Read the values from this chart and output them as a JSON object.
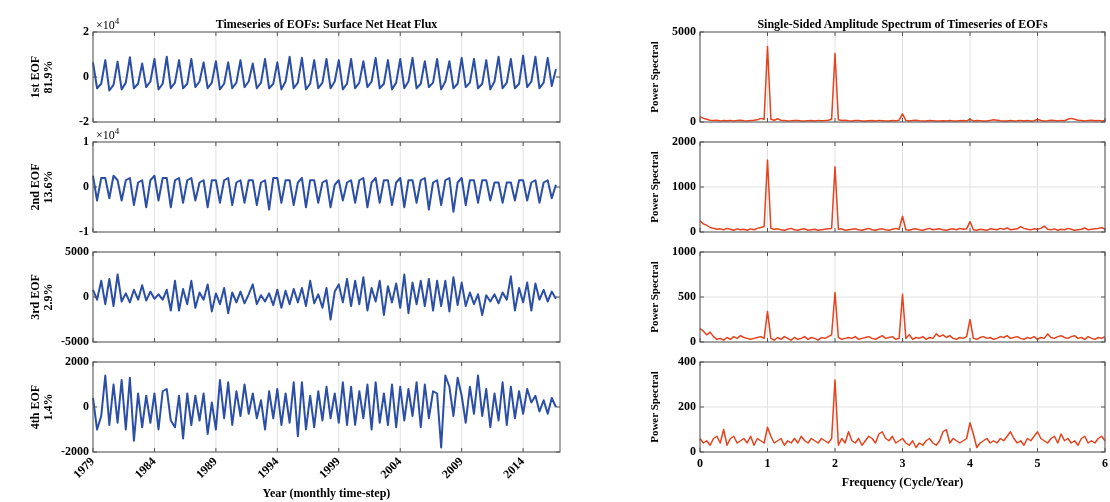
{
  "chart_data": [
    {
      "type": "line",
      "title": "Timeseries of EOFs: Surface Net Heat Flux",
      "ylabel": "1st EOF\n81.9%",
      "annotations": [
        "×10$^{4}$"
      ],
      "grid": true,
      "tick_labels": "y",
      "xlim": [
        1979,
        2017
      ],
      "xticks": [
        1979,
        1984,
        1989,
        1994,
        1999,
        2004,
        2009,
        2014
      ],
      "ylim": [
        -2,
        2
      ],
      "yticks": [
        -2,
        0,
        2
      ],
      "x": [
        1979,
        1979.33,
        1979.67,
        1980,
        1980.33,
        1980.67,
        1981,
        1981.33,
        1981.67,
        1982,
        1982.33,
        1982.67,
        1983,
        1983.33,
        1983.67,
        1984,
        1984.33,
        1984.67,
        1985,
        1985.33,
        1985.67,
        1986,
        1986.33,
        1986.67,
        1987,
        1987.33,
        1987.67,
        1988,
        1988.33,
        1988.67,
        1989,
        1989.33,
        1989.67,
        1990,
        1990.33,
        1990.67,
        1991,
        1991.33,
        1991.67,
        1992,
        1992.33,
        1992.67,
        1993,
        1993.33,
        1993.67,
        1994,
        1994.33,
        1994.67,
        1995,
        1995.33,
        1995.67,
        1996,
        1996.33,
        1996.67,
        1997,
        1997.33,
        1997.67,
        1998,
        1998.33,
        1998.67,
        1999,
        1999.33,
        1999.67,
        2000,
        2000.33,
        2000.67,
        2001,
        2001.33,
        2001.67,
        2002,
        2002.33,
        2002.67,
        2003,
        2003.33,
        2003.67,
        2004,
        2004.33,
        2004.67,
        2005,
        2005.33,
        2005.67,
        2006,
        2006.33,
        2006.67,
        2007,
        2007.33,
        2007.67,
        2008,
        2008.33,
        2008.67,
        2009,
        2009.33,
        2009.67,
        2010,
        2010.33,
        2010.67,
        2011,
        2011.33,
        2011.67,
        2012,
        2012.33,
        2012.67,
        2013,
        2013.33,
        2013.67,
        2014,
        2014.33,
        2014.67,
        2015,
        2015.33,
        2015.67,
        2016,
        2016.33,
        2016.67
      ],
      "series": [
        {
          "color": "#2b4ea6",
          "values": [
            0.65,
            -0.5,
            -0.3,
            0.75,
            -0.6,
            -0.35,
            0.68,
            -0.55,
            -0.25,
            0.88,
            -0.5,
            -0.3,
            0.6,
            -0.45,
            -0.2,
            0.8,
            -0.55,
            -0.3,
            0.9,
            -0.5,
            -0.25,
            0.75,
            -0.5,
            -0.3,
            0.8,
            -0.45,
            -0.2,
            0.65,
            -0.5,
            -0.25,
            0.7,
            -0.55,
            -0.3,
            0.65,
            -0.5,
            -0.25,
            0.75,
            -0.45,
            -0.2,
            0.6,
            -0.5,
            -0.25,
            0.8,
            -0.5,
            -0.3,
            0.65,
            -0.55,
            -0.2,
            0.9,
            -0.5,
            -0.25,
            0.85,
            -0.55,
            -0.3,
            0.75,
            -0.5,
            -0.25,
            0.8,
            -0.5,
            -0.2,
            0.75,
            -0.55,
            -0.3,
            0.8,
            -0.5,
            -0.25,
            0.7,
            -0.45,
            -0.2,
            0.85,
            -0.5,
            -0.3,
            0.75,
            -0.55,
            -0.25,
            0.8,
            -0.5,
            -0.2,
            0.85,
            -0.5,
            -0.3,
            0.7,
            -0.45,
            -0.25,
            0.8,
            -0.55,
            -0.2,
            0.7,
            -0.5,
            -0.3,
            0.85,
            -0.45,
            -0.25,
            0.8,
            -0.5,
            -0.3,
            0.75,
            -0.55,
            -0.2,
            0.9,
            -0.5,
            -0.25,
            0.8,
            -0.5,
            -0.3,
            0.95,
            -0.45,
            -0.2,
            0.9,
            -0.5,
            -0.25,
            0.85,
            -0.4,
            0.35
          ]
        }
      ]
    },
    {
      "type": "line",
      "title": "Single-Sided Amplitude Spectrum of Timeseries of EOFs",
      "ylabel": "Power Spectral",
      "grid": true,
      "tick_labels": "y",
      "xlim": [
        0,
        6
      ],
      "xticks": [
        0,
        1,
        2,
        3,
        4,
        5,
        6
      ],
      "ylim": [
        0,
        5000
      ],
      "yticks": [
        0,
        5000
      ],
      "x": [
        0,
        0.05,
        0.1,
        0.15,
        0.2,
        0.25,
        0.3,
        0.35,
        0.4,
        0.45,
        0.5,
        0.55,
        0.6,
        0.65,
        0.7,
        0.75,
        0.8,
        0.85,
        0.9,
        0.95,
        1,
        1.05,
        1.1,
        1.15,
        1.2,
        1.25,
        1.3,
        1.35,
        1.4,
        1.45,
        1.5,
        1.55,
        1.6,
        1.65,
        1.7,
        1.75,
        1.8,
        1.85,
        1.9,
        1.95,
        2,
        2.05,
        2.1,
        2.15,
        2.2,
        2.25,
        2.3,
        2.35,
        2.4,
        2.45,
        2.5,
        2.55,
        2.6,
        2.65,
        2.7,
        2.75,
        2.8,
        2.85,
        2.9,
        2.95,
        3,
        3.05,
        3.1,
        3.15,
        3.2,
        3.25,
        3.3,
        3.35,
        3.4,
        3.45,
        3.5,
        3.55,
        3.6,
        3.65,
        3.7,
        3.75,
        3.8,
        3.85,
        3.9,
        3.95,
        4,
        4.05,
        4.1,
        4.15,
        4.2,
        4.25,
        4.3,
        4.35,
        4.4,
        4.45,
        4.5,
        4.55,
        4.6,
        4.65,
        4.7,
        4.75,
        4.8,
        4.85,
        4.9,
        4.95,
        5,
        5.05,
        5.1,
        5.15,
        5.2,
        5.25,
        5.3,
        5.35,
        5.4,
        5.45,
        5.5,
        5.55,
        5.6,
        5.65,
        5.7,
        5.75,
        5.8,
        5.85,
        5.9,
        5.95,
        6
      ],
      "series": [
        {
          "color": "#e5421d",
          "values": [
            300,
            200,
            150,
            100,
            80,
            100,
            60,
            80,
            70,
            90,
            60,
            80,
            100,
            70,
            60,
            90,
            100,
            120,
            200,
            150,
            4200,
            150,
            100,
            180,
            90,
            80,
            60,
            70,
            90,
            80,
            60,
            50,
            70,
            80,
            60,
            90,
            70,
            80,
            100,
            150,
            3800,
            120,
            80,
            100,
            70,
            60,
            80,
            90,
            60,
            50,
            70,
            80,
            60,
            90,
            70,
            50,
            60,
            80,
            70,
            100,
            450,
            90,
            60,
            80,
            100,
            70,
            50,
            60,
            80,
            70,
            60,
            50,
            70,
            60,
            80,
            50,
            60,
            70,
            80,
            60,
            150,
            60,
            80,
            70,
            50,
            60,
            90,
            120,
            100,
            70,
            60,
            50,
            80,
            60,
            70,
            90,
            60,
            80,
            50,
            70,
            150,
            80,
            60,
            70,
            100,
            80,
            60,
            90,
            70,
            150,
            200,
            150,
            100,
            80,
            60,
            90,
            100,
            70,
            80,
            60,
            80
          ]
        }
      ]
    },
    {
      "type": "line",
      "ylabel": "2nd EOF\n13.6%",
      "annotations": [
        "×10$^{4}$"
      ],
      "grid": true,
      "tick_labels": "y",
      "xlim": [
        1979,
        2017
      ],
      "xticks": [
        1979,
        1984,
        1989,
        1994,
        1999,
        2004,
        2009,
        2014
      ],
      "ylim": [
        -1,
        1
      ],
      "yticks": [
        -1,
        0,
        1
      ],
      "x": [
        1979,
        1979.33,
        1979.67,
        1980,
        1980.33,
        1980.67,
        1981,
        1981.33,
        1981.67,
        1982,
        1982.33,
        1982.67,
        1983,
        1983.33,
        1983.67,
        1984,
        1984.33,
        1984.67,
        1985,
        1985.33,
        1985.67,
        1986,
        1986.33,
        1986.67,
        1987,
        1987.33,
        1987.67,
        1988,
        1988.33,
        1988.67,
        1989,
        1989.33,
        1989.67,
        1990,
        1990.33,
        1990.67,
        1991,
        1991.33,
        1991.67,
        1992,
        1992.33,
        1992.67,
        1993,
        1993.33,
        1993.67,
        1994,
        1994.33,
        1994.67,
        1995,
        1995.33,
        1995.67,
        1996,
        1996.33,
        1996.67,
        1997,
        1997.33,
        1997.67,
        1998,
        1998.33,
        1998.67,
        1999,
        1999.33,
        1999.67,
        2000,
        2000.33,
        2000.67,
        2001,
        2001.33,
        2001.67,
        2002,
        2002.33,
        2002.67,
        2003,
        2003.33,
        2003.67,
        2004,
        2004.33,
        2004.67,
        2005,
        2005.33,
        2005.67,
        2006,
        2006.33,
        2006.67,
        2007,
        2007.33,
        2007.67,
        2008,
        2008.33,
        2008.67,
        2009,
        2009.33,
        2009.67,
        2010,
        2010.33,
        2010.67,
        2011,
        2011.33,
        2011.67,
        2012,
        2012.33,
        2012.67,
        2013,
        2013.33,
        2013.67,
        2014,
        2014.33,
        2014.67,
        2015,
        2015.33,
        2015.67,
        2016,
        2016.33,
        2016.67
      ],
      "series": [
        {
          "color": "#2b4ea6",
          "values": [
            0.25,
            -0.3,
            0.2,
            0.2,
            -0.25,
            0.25,
            0.15,
            -0.3,
            0.15,
            0.2,
            -0.4,
            0.1,
            0.15,
            -0.45,
            0.15,
            0.25,
            -0.3,
            0.2,
            0.2,
            -0.45,
            0.15,
            0.2,
            -0.35,
            0.15,
            0.2,
            -0.3,
            0.1,
            0.15,
            -0.45,
            0.15,
            0.15,
            -0.35,
            0.15,
            0.2,
            -0.4,
            0.1,
            0.15,
            -0.35,
            0.15,
            0.15,
            -0.4,
            0.1,
            0.15,
            -0.5,
            0.2,
            0.2,
            -0.35,
            0.15,
            0.15,
            -0.4,
            0.1,
            0.2,
            -0.45,
            0.15,
            0.15,
            -0.35,
            0.1,
            0.15,
            -0.45,
            0.05,
            0.15,
            -0.3,
            0.1,
            0.15,
            -0.35,
            0.15,
            0.2,
            -0.45,
            0.1,
            0.2,
            -0.35,
            0.15,
            0.15,
            -0.4,
            0.1,
            0.2,
            -0.45,
            0.15,
            0.15,
            -0.35,
            0.15,
            0.2,
            -0.5,
            0.1,
            0.15,
            -0.4,
            0.15,
            0.2,
            -0.55,
            0.1,
            0.2,
            -0.4,
            0.15,
            0.15,
            -0.35,
            0.15,
            0.15,
            -0.3,
            0.1,
            0.1,
            -0.35,
            0.1,
            0.1,
            -0.3,
            0.15,
            0.15,
            -0.3,
            0.1,
            0.15,
            -0.35,
            0.1,
            0.15,
            -0.25,
            0.05
          ]
        }
      ]
    },
    {
      "type": "line",
      "ylabel": "Power Spectral",
      "grid": true,
      "tick_labels": "y",
      "xlim": [
        0,
        6
      ],
      "xticks": [
        0,
        1,
        2,
        3,
        4,
        5,
        6
      ],
      "ylim": [
        0,
        2000
      ],
      "yticks": [
        0,
        1000,
        2000
      ],
      "x": [
        0,
        0.05,
        0.1,
        0.15,
        0.2,
        0.25,
        0.3,
        0.35,
        0.4,
        0.45,
        0.5,
        0.55,
        0.6,
        0.65,
        0.7,
        0.75,
        0.8,
        0.85,
        0.9,
        0.95,
        1,
        1.05,
        1.1,
        1.15,
        1.2,
        1.25,
        1.3,
        1.35,
        1.4,
        1.45,
        1.5,
        1.55,
        1.6,
        1.65,
        1.7,
        1.75,
        1.8,
        1.85,
        1.9,
        1.95,
        2,
        2.05,
        2.1,
        2.15,
        2.2,
        2.25,
        2.3,
        2.35,
        2.4,
        2.45,
        2.5,
        2.55,
        2.6,
        2.65,
        2.7,
        2.75,
        2.8,
        2.85,
        2.9,
        2.95,
        3,
        3.05,
        3.1,
        3.15,
        3.2,
        3.25,
        3.3,
        3.35,
        3.4,
        3.45,
        3.5,
        3.55,
        3.6,
        3.65,
        3.7,
        3.75,
        3.8,
        3.85,
        3.9,
        3.95,
        4,
        4.05,
        4.1,
        4.15,
        4.2,
        4.25,
        4.3,
        4.35,
        4.4,
        4.45,
        4.5,
        4.55,
        4.6,
        4.65,
        4.7,
        4.75,
        4.8,
        4.85,
        4.9,
        4.95,
        5,
        5.05,
        5.1,
        5.15,
        5.2,
        5.25,
        5.3,
        5.35,
        5.4,
        5.45,
        5.5,
        5.55,
        5.6,
        5.65,
        5.7,
        5.75,
        5.8,
        5.85,
        5.9,
        5.95,
        6
      ],
      "series": [
        {
          "color": "#e5421d",
          "values": [
            250,
            180,
            150,
            100,
            80,
            60,
            70,
            50,
            80,
            60,
            40,
            70,
            50,
            60,
            40,
            70,
            50,
            80,
            100,
            120,
            1600,
            80,
            60,
            70,
            50,
            40,
            60,
            80,
            50,
            40,
            60,
            70,
            40,
            50,
            60,
            40,
            50,
            60,
            70,
            80,
            1450,
            60,
            70,
            40,
            50,
            60,
            70,
            50,
            40,
            60,
            80,
            50,
            40,
            60,
            70,
            50,
            40,
            60,
            80,
            60,
            350,
            50,
            40,
            60,
            70,
            50,
            40,
            60,
            80,
            50,
            60,
            70,
            50,
            40,
            60,
            70,
            50,
            80,
            60,
            70,
            230,
            50,
            40,
            60,
            50,
            40,
            70,
            60,
            50,
            80,
            60,
            90,
            50,
            60,
            70,
            120,
            80,
            60,
            50,
            70,
            60,
            80,
            130,
            60,
            50,
            70,
            40,
            60,
            50,
            80,
            60,
            40,
            50,
            60,
            90,
            50,
            60,
            70,
            80,
            100,
            60
          ]
        }
      ]
    },
    {
      "type": "line",
      "ylabel": "3rd EOF\n2.9%",
      "grid": true,
      "tick_labels": "y",
      "xlim": [
        1979,
        2017
      ],
      "xticks": [
        1979,
        1984,
        1989,
        1994,
        1999,
        2004,
        2009,
        2014
      ],
      "ylim": [
        -5000,
        5000
      ],
      "yticks": [
        -5000,
        0,
        5000
      ],
      "x": [
        1979,
        1979.33,
        1979.67,
        1980,
        1980.33,
        1980.67,
        1981,
        1981.33,
        1981.67,
        1982,
        1982.33,
        1982.67,
        1983,
        1983.33,
        1983.67,
        1984,
        1984.33,
        1984.67,
        1985,
        1985.33,
        1985.67,
        1986,
        1986.33,
        1986.67,
        1987,
        1987.33,
        1987.67,
        1988,
        1988.33,
        1988.67,
        1989,
        1989.33,
        1989.67,
        1990,
        1990.33,
        1990.67,
        1991,
        1991.33,
        1991.67,
        1992,
        1992.33,
        1992.67,
        1993,
        1993.33,
        1993.67,
        1994,
        1994.33,
        1994.67,
        1995,
        1995.33,
        1995.67,
        1996,
        1996.33,
        1996.67,
        1997,
        1997.33,
        1997.67,
        1998,
        1998.33,
        1998.67,
        1999,
        1999.33,
        1999.67,
        2000,
        2000.33,
        2000.67,
        2001,
        2001.33,
        2001.67,
        2002,
        2002.33,
        2002.67,
        2003,
        2003.33,
        2003.67,
        2004,
        2004.33,
        2004.67,
        2005,
        2005.33,
        2005.67,
        2006,
        2006.33,
        2006.67,
        2007,
        2007.33,
        2007.67,
        2008,
        2008.33,
        2008.67,
        2009,
        2009.33,
        2009.67,
        2010,
        2010.33,
        2010.67,
        2011,
        2011.33,
        2011.67,
        2012,
        2012.33,
        2012.67,
        2013,
        2013.33,
        2013.67,
        2014,
        2014.33,
        2014.67,
        2015,
        2015.33,
        2015.67,
        2016,
        2016.33,
        2016.67
      ],
      "series": [
        {
          "color": "#2b4ea6",
          "values": [
            800,
            -300,
            1800,
            -800,
            2000,
            -1000,
            2500,
            -500,
            400,
            -600,
            800,
            -300,
            1300,
            -400,
            600,
            -200,
            300,
            -300,
            800,
            -1500,
            1800,
            -1500,
            900,
            -800,
            1800,
            -1200,
            500,
            -300,
            1400,
            -1600,
            400,
            -800,
            1000,
            -1800,
            500,
            -600,
            600,
            -700,
            300,
            1400,
            -800,
            200,
            -500,
            400,
            -900,
            800,
            -1200,
            700,
            -800,
            900,
            -600,
            1000,
            -1000,
            1800,
            -700,
            300,
            -1200,
            1000,
            -2500,
            600,
            1400,
            -600,
            2000,
            -1000,
            1800,
            -800,
            2200,
            -1500,
            1000,
            -500,
            1800,
            -2000,
            1200,
            -600,
            1500,
            -1200,
            2500,
            -1800,
            1600,
            -800,
            1800,
            -1000,
            2000,
            -1500,
            1800,
            -1000,
            1800,
            -1600,
            2200,
            -900,
            1600,
            -1000,
            500,
            -800,
            300,
            -2000,
            200,
            -500,
            300,
            -700,
            500,
            -300,
            2300,
            -1500,
            1000,
            -600,
            1600,
            -1500,
            1500,
            -300,
            800,
            -500,
            600,
            -200
          ]
        }
      ]
    },
    {
      "type": "line",
      "ylabel": "Power Spectral",
      "grid": true,
      "tick_labels": "y",
      "xlim": [
        0,
        6
      ],
      "xticks": [
        0,
        1,
        2,
        3,
        4,
        5,
        6
      ],
      "ylim": [
        0,
        1000
      ],
      "yticks": [
        0,
        500,
        1000
      ],
      "x": [
        0,
        0.05,
        0.1,
        0.15,
        0.2,
        0.25,
        0.3,
        0.35,
        0.4,
        0.45,
        0.5,
        0.55,
        0.6,
        0.65,
        0.7,
        0.75,
        0.8,
        0.85,
        0.9,
        0.95,
        1,
        1.05,
        1.1,
        1.15,
        1.2,
        1.25,
        1.3,
        1.35,
        1.4,
        1.45,
        1.5,
        1.55,
        1.6,
        1.65,
        1.7,
        1.75,
        1.8,
        1.85,
        1.9,
        1.95,
        2,
        2.05,
        2.1,
        2.15,
        2.2,
        2.25,
        2.3,
        2.35,
        2.4,
        2.45,
        2.5,
        2.55,
        2.6,
        2.65,
        2.7,
        2.75,
        2.8,
        2.85,
        2.9,
        2.95,
        3,
        3.05,
        3.1,
        3.15,
        3.2,
        3.25,
        3.3,
        3.35,
        3.4,
        3.45,
        3.5,
        3.55,
        3.6,
        3.65,
        3.7,
        3.75,
        3.8,
        3.85,
        3.9,
        3.95,
        4,
        4.05,
        4.1,
        4.15,
        4.2,
        4.25,
        4.3,
        4.35,
        4.4,
        4.45,
        4.5,
        4.55,
        4.6,
        4.65,
        4.7,
        4.75,
        4.8,
        4.85,
        4.9,
        4.95,
        5,
        5.05,
        5.1,
        5.15,
        5.2,
        5.25,
        5.3,
        5.35,
        5.4,
        5.45,
        5.5,
        5.55,
        5.6,
        5.65,
        5.7,
        5.75,
        5.8,
        5.85,
        5.9,
        5.95,
        6
      ],
      "series": [
        {
          "color": "#e5421d",
          "values": [
            150,
            120,
            80,
            110,
            60,
            30,
            40,
            20,
            50,
            30,
            60,
            40,
            70,
            50,
            40,
            30,
            40,
            50,
            60,
            40,
            340,
            40,
            20,
            50,
            30,
            60,
            40,
            20,
            50,
            30,
            40,
            60,
            30,
            50,
            40,
            20,
            50,
            40,
            60,
            80,
            550,
            50,
            30,
            40,
            50,
            40,
            60,
            30,
            40,
            50,
            60,
            40,
            30,
            50,
            70,
            40,
            50,
            60,
            30,
            40,
            530,
            40,
            80,
            30,
            50,
            40,
            60,
            30,
            50,
            40,
            90,
            60,
            80,
            50,
            70,
            40,
            30,
            50,
            40,
            60,
            250,
            40,
            30,
            50,
            60,
            40,
            50,
            30,
            40,
            60,
            50,
            70,
            40,
            50,
            60,
            40,
            30,
            50,
            40,
            60,
            30,
            50,
            40,
            90,
            50,
            40,
            60,
            70,
            50,
            40,
            60,
            70,
            40,
            50,
            30,
            60,
            40,
            30,
            50,
            40,
            60
          ]
        }
      ]
    },
    {
      "type": "line",
      "ylabel": "4th EOF\n1.4%",
      "xlabel": "Year (monthly time-step)",
      "grid": true,
      "xlim": [
        1979,
        2017
      ],
      "xticks": [
        1979,
        1984,
        1989,
        1994,
        1999,
        2004,
        2009,
        2014
      ],
      "ylim": [
        -2000,
        2000
      ],
      "yticks": [
        -2000,
        0,
        2000
      ],
      "x": [
        1979,
        1979.33,
        1979.67,
        1980,
        1980.33,
        1980.67,
        1981,
        1981.33,
        1981.67,
        1982,
        1982.33,
        1982.67,
        1983,
        1983.33,
        1983.67,
        1984,
        1984.33,
        1984.67,
        1985,
        1985.33,
        1985.67,
        1986,
        1986.33,
        1986.67,
        1987,
        1987.33,
        1987.67,
        1988,
        1988.33,
        1988.67,
        1989,
        1989.33,
        1989.67,
        1990,
        1990.33,
        1990.67,
        1991,
        1991.33,
        1991.67,
        1992,
        1992.33,
        1992.67,
        1993,
        1993.33,
        1993.67,
        1994,
        1994.33,
        1994.67,
        1995,
        1995.33,
        1995.67,
        1996,
        1996.33,
        1996.67,
        1997,
        1997.33,
        1997.67,
        1998,
        1998.33,
        1998.67,
        1999,
        1999.33,
        1999.67,
        2000,
        2000.33,
        2000.67,
        2001,
        2001.33,
        2001.67,
        2002,
        2002.33,
        2002.67,
        2003,
        2003.33,
        2003.67,
        2004,
        2004.33,
        2004.67,
        2005,
        2005.33,
        2005.67,
        2006,
        2006.33,
        2006.67,
        2007,
        2007.33,
        2007.67,
        2008,
        2008.33,
        2008.67,
        2009,
        2009.33,
        2009.67,
        2010,
        2010.33,
        2010.67,
        2011,
        2011.33,
        2011.67,
        2012,
        2012.33,
        2012.67,
        2013,
        2013.33,
        2013.67,
        2014,
        2014.33,
        2014.67,
        2015,
        2015.33,
        2015.67,
        2016,
        2016.33,
        2016.67
      ],
      "series": [
        {
          "color": "#2b4ea6",
          "values": [
            400,
            -1000,
            -400,
            1400,
            -800,
            1000,
            -700,
            1200,
            -1000,
            1300,
            -1500,
            600,
            -900,
            500,
            -700,
            600,
            -1000,
            700,
            800,
            -600,
            -900,
            500,
            -1400,
            600,
            -800,
            500,
            -600,
            600,
            -1200,
            200,
            -1000,
            1200,
            -500,
            1100,
            -800,
            700,
            -400,
            1000,
            -300,
            600,
            -500,
            300,
            -1000,
            700,
            -500,
            800,
            -800,
            600,
            -700,
            1100,
            -1300,
            1100,
            -1000,
            500,
            -900,
            700,
            -600,
            900,
            -500,
            600,
            -700,
            1100,
            -800,
            900,
            -800,
            700,
            -500,
            1000,
            -1000,
            1100,
            -700,
            600,
            -800,
            1000,
            -900,
            900,
            -600,
            800,
            -400,
            1100,
            -900,
            1000,
            -500,
            700,
            600,
            -1800,
            1400,
            900,
            -400,
            1300,
            500,
            -700,
            900,
            -300,
            1400,
            -400,
            800,
            -900,
            600,
            -600,
            1100,
            -800,
            900,
            -500,
            700,
            -300,
            800,
            200,
            500,
            -200,
            300,
            -300,
            400,
            0
          ]
        }
      ]
    },
    {
      "type": "line",
      "ylabel": "Power Spectral",
      "xlabel": "Frequency (Cycle/Year)",
      "grid": true,
      "xlim": [
        0,
        6
      ],
      "xticks": [
        0,
        1,
        2,
        3,
        4,
        5,
        6
      ],
      "ylim": [
        0,
        400
      ],
      "yticks": [
        0,
        200,
        400
      ],
      "x": [
        0,
        0.05,
        0.1,
        0.15,
        0.2,
        0.25,
        0.3,
        0.35,
        0.4,
        0.45,
        0.5,
        0.55,
        0.6,
        0.65,
        0.7,
        0.75,
        0.8,
        0.85,
        0.9,
        0.95,
        1,
        1.05,
        1.1,
        1.15,
        1.2,
        1.25,
        1.3,
        1.35,
        1.4,
        1.45,
        1.5,
        1.55,
        1.6,
        1.65,
        1.7,
        1.75,
        1.8,
        1.85,
        1.9,
        1.95,
        2,
        2.05,
        2.1,
        2.15,
        2.2,
        2.25,
        2.3,
        2.35,
        2.4,
        2.45,
        2.5,
        2.55,
        2.6,
        2.65,
        2.7,
        2.75,
        2.8,
        2.85,
        2.9,
        2.95,
        3,
        3.05,
        3.1,
        3.15,
        3.2,
        3.25,
        3.3,
        3.35,
        3.4,
        3.45,
        3.5,
        3.55,
        3.6,
        3.65,
        3.7,
        3.75,
        3.8,
        3.85,
        3.9,
        3.95,
        4,
        4.05,
        4.1,
        4.15,
        4.2,
        4.25,
        4.3,
        4.35,
        4.4,
        4.45,
        4.5,
        4.55,
        4.6,
        4.65,
        4.7,
        4.75,
        4.8,
        4.85,
        4.9,
        4.95,
        5,
        5.05,
        5.1,
        5.15,
        5.2,
        5.25,
        5.3,
        5.35,
        5.4,
        5.45,
        5.5,
        5.55,
        5.6,
        5.65,
        5.7,
        5.75,
        5.8,
        5.85,
        5.9,
        5.95,
        6
      ],
      "series": [
        {
          "color": "#e5421d",
          "values": [
            60,
            40,
            50,
            30,
            60,
            70,
            40,
            100,
            30,
            60,
            70,
            40,
            50,
            60,
            40,
            70,
            30,
            60,
            50,
            40,
            110,
            70,
            40,
            50,
            60,
            30,
            50,
            40,
            60,
            40,
            70,
            50,
            40,
            60,
            50,
            40,
            60,
            50,
            40,
            60,
            320,
            30,
            60,
            40,
            90,
            50,
            40,
            60,
            30,
            50,
            70,
            60,
            40,
            80,
            90,
            60,
            50,
            70,
            40,
            50,
            60,
            40,
            30,
            50,
            20,
            40,
            30,
            50,
            60,
            40,
            30,
            50,
            90,
            100,
            40,
            60,
            50,
            40,
            50,
            60,
            130,
            80,
            20,
            40,
            50,
            60,
            40,
            50,
            40,
            60,
            50,
            70,
            90,
            60,
            40,
            50,
            30,
            60,
            50,
            70,
            90,
            60,
            50,
            40,
            60,
            70,
            40,
            80,
            50,
            60,
            40,
            50,
            30,
            60,
            70,
            40,
            50,
            40,
            60,
            70,
            50
          ]
        }
      ]
    }
  ]
}
